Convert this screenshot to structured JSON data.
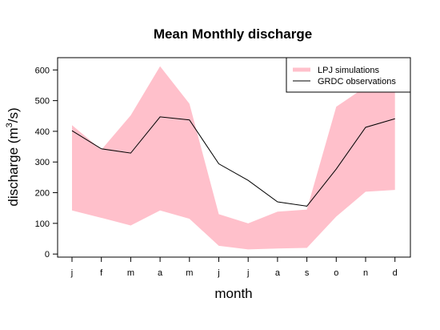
{
  "chart_data": {
    "type": "area",
    "title": "Mean Monthly discharge",
    "xlabel": "month",
    "ylabel": "discharge (m",
    "ylabel_superscript": "3",
    "ylabel_suffix": "/s)",
    "categories": [
      "j",
      "f",
      "m",
      "a",
      "m",
      "j",
      "j",
      "a",
      "s",
      "o",
      "n",
      "d"
    ],
    "ylim": [
      -10,
      640
    ],
    "yticks": [
      0,
      100,
      200,
      300,
      400,
      500,
      600
    ],
    "grid": false,
    "legend_position": "top-right",
    "series": [
      {
        "name": "LPJ simulations",
        "kind": "band",
        "color": "#ffc0cb",
        "lower": [
          142,
          118,
          93,
          142,
          115,
          27,
          15,
          18,
          20,
          122,
          203,
          209
        ],
        "upper": [
          420,
          340,
          452,
          612,
          490,
          130,
          100,
          138,
          145,
          480,
          545,
          565
        ]
      },
      {
        "name": "GRDC observations",
        "kind": "line",
        "color": "#000000",
        "values": [
          402,
          343,
          329,
          447,
          437,
          294,
          240,
          170,
          156,
          277,
          413,
          441
        ]
      }
    ]
  }
}
